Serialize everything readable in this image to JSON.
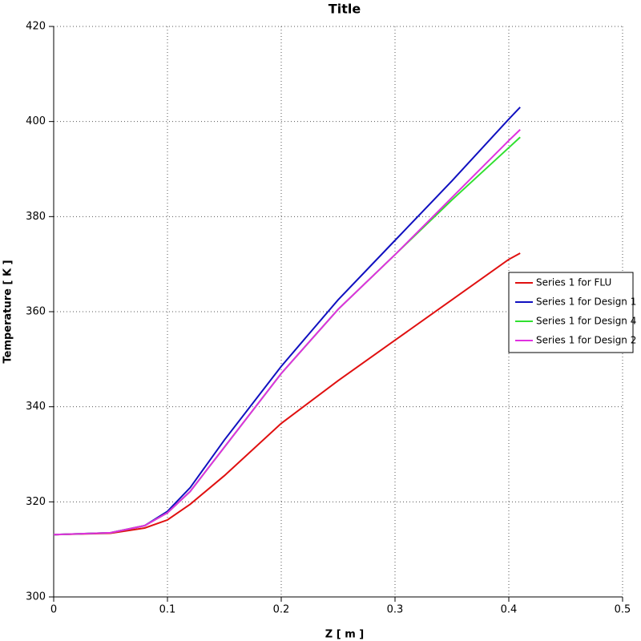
{
  "chart_data": {
    "type": "line",
    "title": "Title",
    "x_label": "Z [ m ]",
    "y_label": "Temperature [ K ]",
    "x": [
      0,
      0.05,
      0.08,
      0.1,
      0.12,
      0.15,
      0.2,
      0.25,
      0.3,
      0.35,
      0.4,
      0.41
    ],
    "series": [
      {
        "name": "Series 1 for FLU",
        "color": "#e01010",
        "values": [
          313.1,
          313.4,
          314.5,
          316.2,
          319.5,
          325.5,
          336.5,
          345.5,
          354,
          362.5,
          371,
          372.3
        ]
      },
      {
        "name": "Series 1 for Design 1",
        "color": "#1010c0",
        "values": [
          313.1,
          313.5,
          315,
          318,
          323,
          333,
          348.5,
          362.5,
          375,
          387.5,
          400.5,
          403
        ]
      },
      {
        "name": "Series 1 for Design 4",
        "color": "#30e030",
        "values": [
          313.1,
          313.5,
          315,
          317.7,
          322.2,
          331.5,
          347,
          360.5,
          372,
          383.5,
          394.5,
          396.7
        ]
      },
      {
        "name": "Series 1 for Design 2",
        "color": "#e030e0",
        "values": [
          313.1,
          313.5,
          315,
          317.7,
          322.2,
          331.5,
          347,
          360.5,
          372,
          384,
          396,
          398.3
        ]
      }
    ],
    "xlim": [
      0,
      0.5
    ],
    "xticks": [
      0,
      0.1,
      0.2,
      0.3,
      0.4,
      0.5
    ],
    "ylim": [
      300,
      420
    ],
    "yticks": [
      300,
      320,
      340,
      360,
      380,
      400,
      420
    ],
    "grid": true,
    "legend": "right"
  }
}
